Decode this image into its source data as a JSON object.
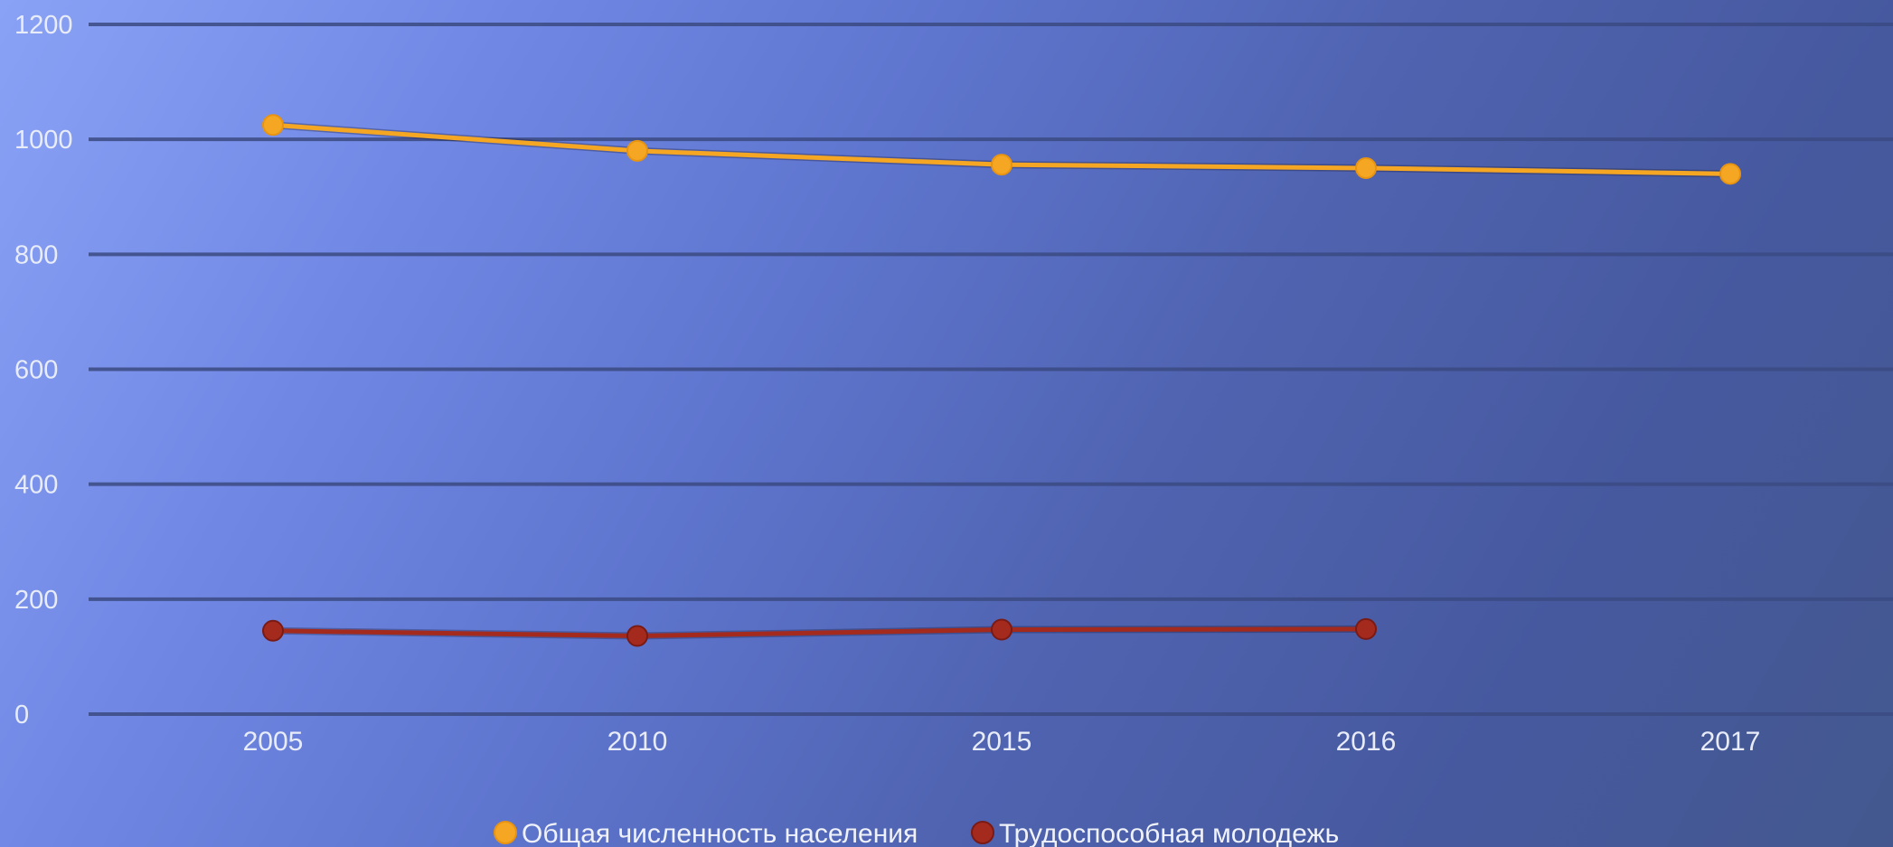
{
  "chart_data": {
    "type": "line",
    "categories": [
      "2005",
      "2010",
      "2015",
      "2016",
      "2017"
    ],
    "ylim": [
      0,
      1200
    ],
    "yticks": [
      0,
      200,
      400,
      600,
      800,
      1000,
      1200
    ],
    "grid": true,
    "legend_position": "bottom",
    "series": [
      {
        "name": "Общая численность населения",
        "color": "#f5a623",
        "values": [
          1025,
          980,
          956,
          950,
          940
        ]
      },
      {
        "name": "Трудоспособная молодежь",
        "color": "#a52a1e",
        "values": [
          145,
          136,
          147,
          148,
          null
        ]
      }
    ]
  }
}
